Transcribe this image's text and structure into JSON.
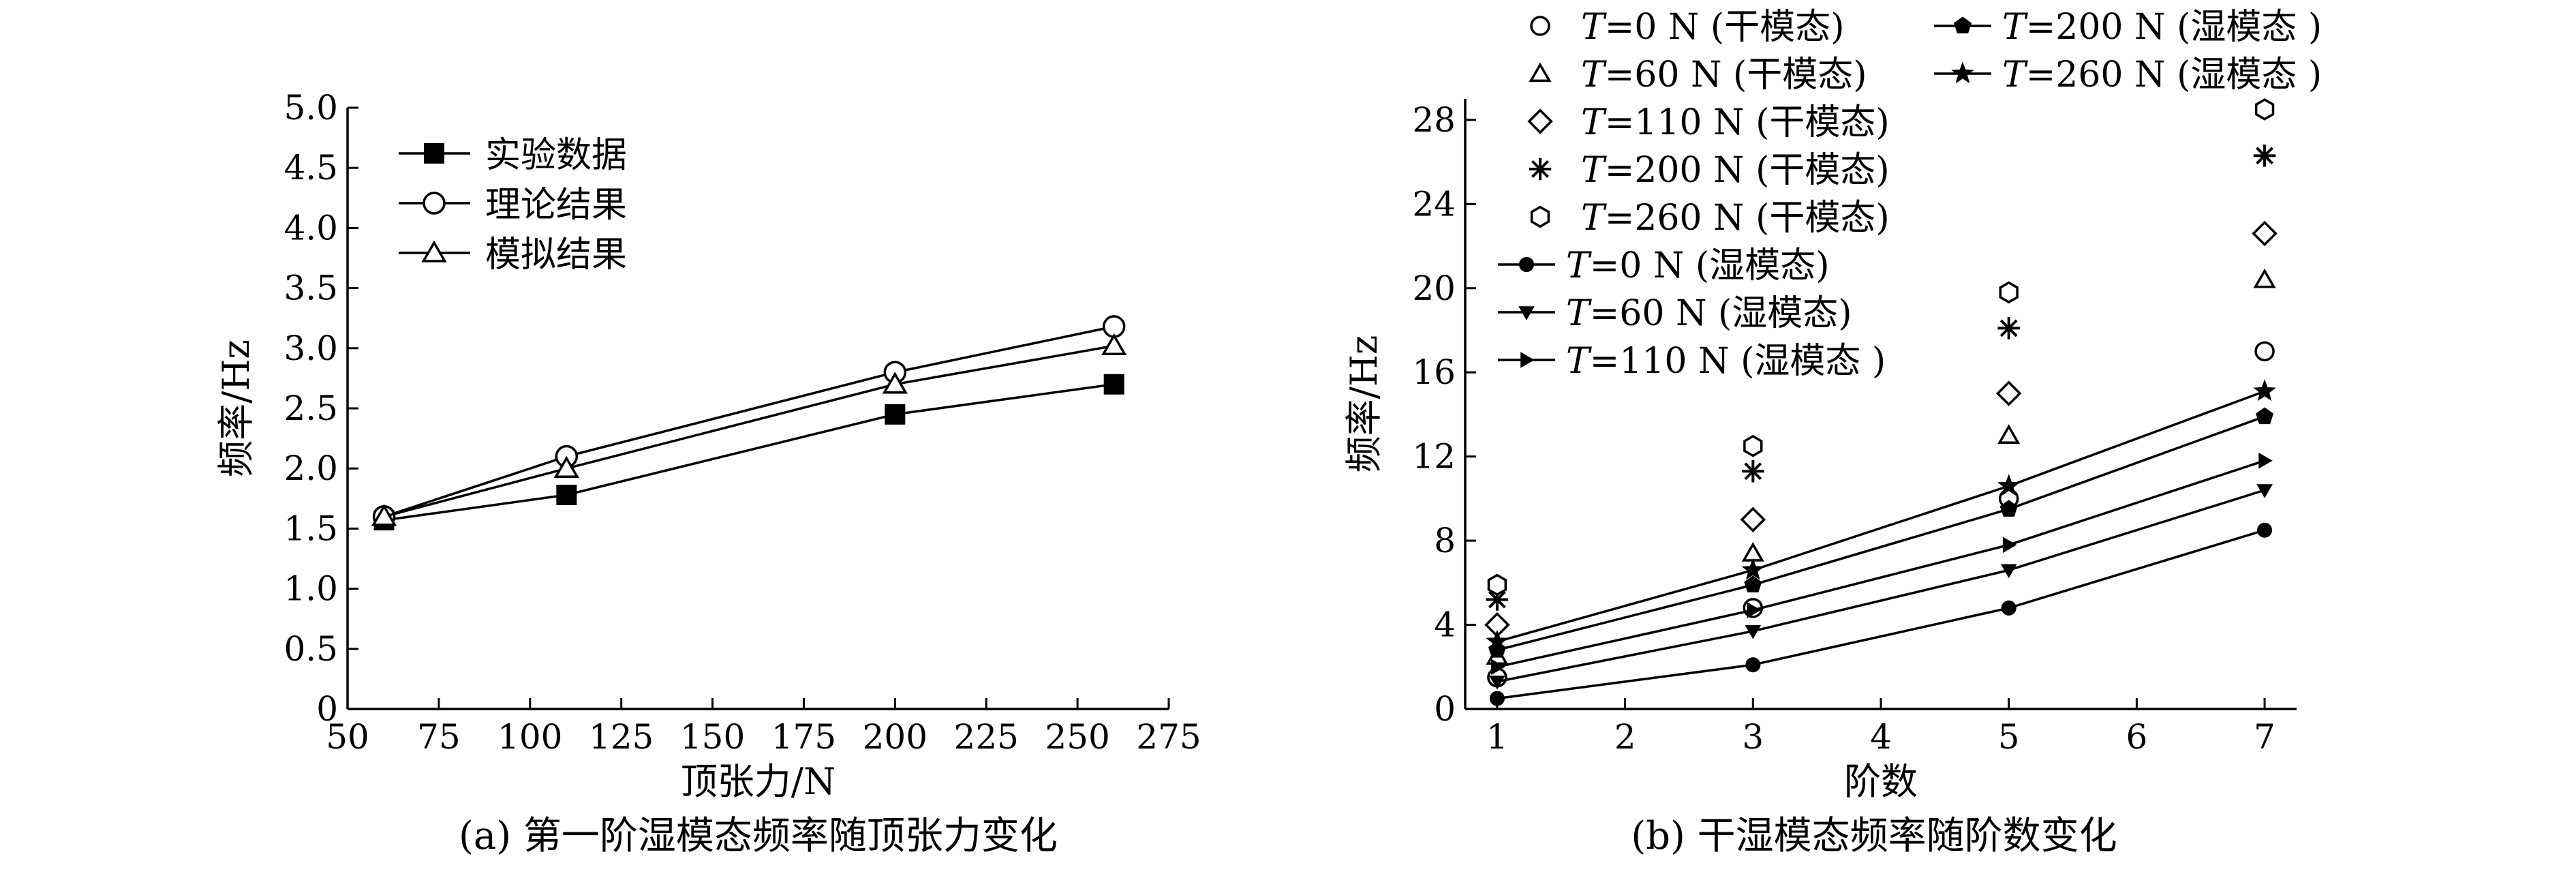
{
  "figure": {
    "charts": [
      {
        "caption": "(a) 第一阶湿模态频率随顶张力变化",
        "xlabel": "顶张力/N",
        "ylabel": "频率/Hz"
      },
      {
        "caption": "(b) 干湿模态频率随阶数变化",
        "xlabel": "阶数",
        "ylabel": "频率/Hz"
      }
    ]
  },
  "chart_data": [
    {
      "type": "line",
      "title": "",
      "caption": "(a) 第一阶湿模态频率随顶张力变化",
      "xlabel": "顶张力/N",
      "ylabel": "频率/Hz",
      "xlim": [
        50,
        275
      ],
      "ylim": [
        0,
        5
      ],
      "xticks": [
        50,
        75,
        100,
        125,
        150,
        175,
        200,
        225,
        250,
        275
      ],
      "yticks": [
        0,
        0.5,
        1.0,
        1.5,
        2.0,
        2.5,
        3.0,
        3.5,
        4.0,
        4.5,
        5.0
      ],
      "ytick_labels": [
        "0",
        "0.5",
        "1.0",
        "1.5",
        "2.0",
        "2.5",
        "3.0",
        "3.5",
        "4.0",
        "4.5",
        "5.0"
      ],
      "grid": false,
      "legend_position": "top-left",
      "x": [
        60,
        110,
        200,
        260
      ],
      "series": [
        {
          "name": "实验数据",
          "marker": "filled-square",
          "line": true,
          "values": [
            1.57,
            1.78,
            2.45,
            2.7
          ]
        },
        {
          "name": "理论结果",
          "marker": "open-circle",
          "line": true,
          "values": [
            1.6,
            2.1,
            2.8,
            3.18
          ]
        },
        {
          "name": "模拟结果",
          "marker": "open-triangle",
          "line": true,
          "values": [
            1.6,
            2.0,
            2.7,
            3.02
          ]
        }
      ]
    },
    {
      "type": "scatter",
      "title": "",
      "caption": "(b) 干湿模态频率随阶数变化",
      "xlabel": "阶数",
      "ylabel": "频率/Hz",
      "xlim": [
        0.75,
        7.25
      ],
      "ylim": [
        0,
        29
      ],
      "xticks": [
        1,
        2,
        3,
        4,
        5,
        6,
        7
      ],
      "yticks": [
        0,
        4,
        8,
        12,
        16,
        20,
        24,
        28
      ],
      "grid": false,
      "legend_position": "top-left",
      "x": [
        1,
        3,
        5,
        7
      ],
      "series": [
        {
          "name": "T=0 N (干模态)",
          "italic_prefix": "T",
          "label_rest": "=0 N (干模态)",
          "marker": "open-circle",
          "line": false,
          "values": [
            1.5,
            4.8,
            10.0,
            17.0
          ]
        },
        {
          "name": "T=60 N (干模态)",
          "italic_prefix": "T",
          "label_rest": "=60 N (干模态)",
          "marker": "open-triangle",
          "line": false,
          "values": [
            2.5,
            7.4,
            13.0,
            20.4
          ]
        },
        {
          "name": "T=110 N (干模态)",
          "italic_prefix": "T",
          "label_rest": "=110 N (干模态)",
          "marker": "open-diamond",
          "line": false,
          "values": [
            4.0,
            9.0,
            15.0,
            22.6
          ]
        },
        {
          "name": "T=200 N (干模态)",
          "italic_prefix": "T",
          "label_rest": "=200 N (干模态)",
          "marker": "asterisk",
          "line": false,
          "values": [
            5.2,
            11.3,
            18.1,
            26.3
          ]
        },
        {
          "name": "T=260 N (干模态)",
          "italic_prefix": "T",
          "label_rest": "=260 N (干模态)",
          "marker": "open-hexagon",
          "line": false,
          "values": [
            5.9,
            12.5,
            19.8,
            28.5
          ]
        },
        {
          "name": "T=0 N (湿模态)",
          "italic_prefix": "T",
          "label_rest": "=0 N (湿模态)",
          "marker": "filled-circle",
          "line": true,
          "values": [
            0.5,
            2.1,
            4.8,
            8.5
          ]
        },
        {
          "name": "T=60 N (湿模态)",
          "italic_prefix": "T",
          "label_rest": "=60 N (湿模态)",
          "marker": "filled-triangle-down",
          "line": true,
          "values": [
            1.3,
            3.7,
            6.6,
            10.4
          ]
        },
        {
          "name": "T=110 N (湿模态 )",
          "italic_prefix": "T",
          "label_rest": "=110 N (湿模态 )",
          "marker": "filled-triangle-right",
          "line": true,
          "values": [
            2.0,
            4.7,
            7.8,
            11.8
          ]
        },
        {
          "name": "T=200 N (湿模态 )",
          "italic_prefix": "T",
          "label_rest": "=200 N (湿模态 )",
          "marker": "filled-pentagon",
          "line": true,
          "values": [
            2.8,
            5.9,
            9.5,
            13.9
          ]
        },
        {
          "name": "T=260 N (湿模态 )",
          "italic_prefix": "T",
          "label_rest": "=260 N (湿模态 )",
          "marker": "filled-star",
          "line": true,
          "values": [
            3.2,
            6.6,
            10.6,
            15.1
          ]
        }
      ]
    }
  ]
}
